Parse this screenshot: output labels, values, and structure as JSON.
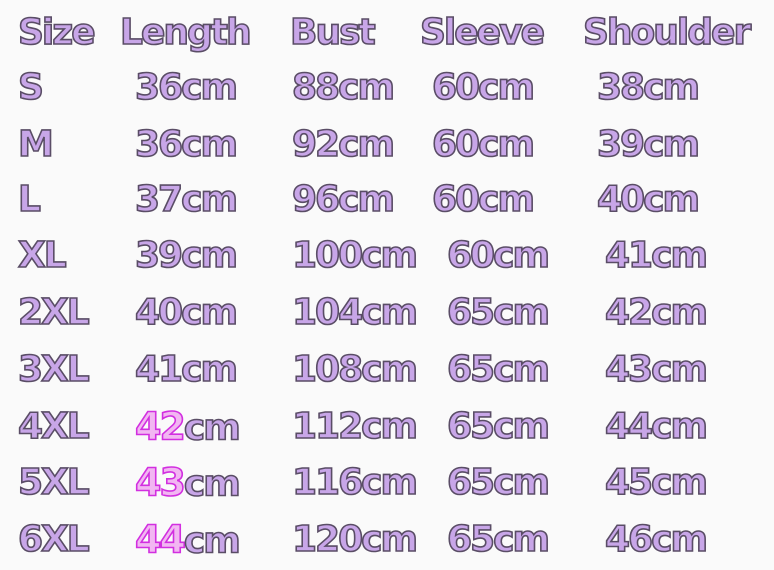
{
  "headers": [
    "Size",
    "Length",
    "Bust",
    "Sleeve",
    "Shoulder"
  ],
  "rows": [
    {
      "size": "S",
      "length": {
        "num": "36",
        "unit": "cm",
        "highlight": false
      },
      "bust": "88cm",
      "sleeve": "60cm",
      "shoulder": "38cm"
    },
    {
      "size": "M",
      "length": {
        "num": "36",
        "unit": "cm",
        "highlight": false
      },
      "bust": "92cm",
      "sleeve": "60cm",
      "shoulder": "39cm"
    },
    {
      "size": "L",
      "length": {
        "num": "37",
        "unit": "cm",
        "highlight": false
      },
      "bust": "96cm",
      "sleeve": "60cm",
      "shoulder": "40cm"
    },
    {
      "size": "XL",
      "length": {
        "num": "39",
        "unit": "cm",
        "highlight": false
      },
      "bust": "100cm",
      "sleeve": "60cm",
      "shoulder": "41cm"
    },
    {
      "size": "2XL",
      "length": {
        "num": "40",
        "unit": "cm",
        "highlight": false
      },
      "bust": "104cm",
      "sleeve": "65cm",
      "shoulder": "42cm"
    },
    {
      "size": "3XL",
      "length": {
        "num": "41",
        "unit": "cm",
        "highlight": false
      },
      "bust": "108cm",
      "sleeve": "65cm",
      "shoulder": "43cm"
    },
    {
      "size": "4XL",
      "length": {
        "num": "42",
        "unit": "cm",
        "highlight": true
      },
      "bust": "112cm",
      "sleeve": "65cm",
      "shoulder": "44cm"
    },
    {
      "size": "5XL",
      "length": {
        "num": "43",
        "unit": "cm",
        "highlight": true
      },
      "bust": "116cm",
      "sleeve": "65cm",
      "shoulder": "45cm"
    },
    {
      "size": "6XL",
      "length": {
        "num": "44",
        "unit": "cm",
        "highlight": true
      },
      "bust": "120cm",
      "sleeve": "65cm",
      "shoulder": "46cm"
    }
  ],
  "colors": {
    "text_fill": "#c8a6e8",
    "text_outline": "#5a4d66",
    "highlight_fill": "#f2b6f2",
    "highlight_outline": "#d22fe0",
    "background": "#fafafa"
  }
}
